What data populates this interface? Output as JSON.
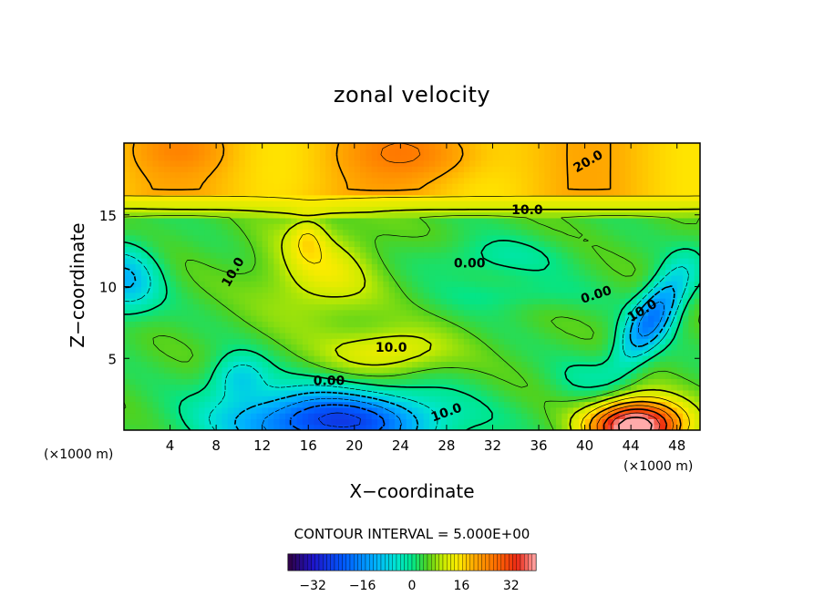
{
  "chart_data": {
    "type": "heatmap",
    "title": "zonal velocity",
    "xlabel": "X−coordinate",
    "ylabel": "Z−coordinate",
    "x_unit_left": "(×1000 m)",
    "x_unit_right": "(×1000 m)",
    "xlim": [
      0,
      50
    ],
    "ylim": [
      0,
      20
    ],
    "x_ticks": [
      4,
      8,
      12,
      16,
      20,
      24,
      28,
      32,
      36,
      40,
      44,
      48
    ],
    "x_tick_labels": [
      "4",
      "8",
      "12",
      "16",
      "20",
      "24",
      "28",
      "32",
      "36",
      "40",
      "44",
      "48"
    ],
    "y_ticks": [
      5,
      10,
      15
    ],
    "y_tick_labels": [
      "5",
      "10",
      "15"
    ],
    "contour_interval_text": "CONTOUR INTERVAL = 5.000E+00",
    "contour_interval": 5.0,
    "contour_labels": [
      {
        "text": "20.0",
        "x": 40.3,
        "z": 18.7,
        "angle": -30
      },
      {
        "text": "10.0",
        "x": 35.0,
        "z": 15.3,
        "angle": 0
      },
      {
        "text": "10.0",
        "x": 9.5,
        "z": 11.0,
        "angle": -60
      },
      {
        "text": "0.00",
        "x": 30.0,
        "z": 11.6,
        "angle": 0
      },
      {
        "text": "0.00",
        "x": 41.0,
        "z": 9.4,
        "angle": -18
      },
      {
        "text": "10.0",
        "x": 45.0,
        "z": 8.3,
        "angle": -30
      },
      {
        "text": "10.0",
        "x": 23.2,
        "z": 5.7,
        "angle": 0
      },
      {
        "text": "0.00",
        "x": 17.8,
        "z": 3.4,
        "angle": 0
      },
      {
        "text": "10.0",
        "x": 28.0,
        "z": 1.2,
        "angle": -20
      }
    ],
    "features": [
      {
        "kind": "max",
        "x": 44.5,
        "z": 0.3,
        "value": 40
      },
      {
        "kind": "min",
        "x": 18.0,
        "z": 0.5,
        "value": -25
      },
      {
        "kind": "min",
        "x": 45.0,
        "z": 7.0,
        "value": -20
      },
      {
        "kind": "min",
        "x": 10.0,
        "z": 3.7,
        "value": -8
      },
      {
        "kind": "min",
        "x": 0.0,
        "z": 10.5,
        "value": -12
      },
      {
        "kind": "max",
        "x": 25.5,
        "z": 19.0,
        "value": 24
      },
      {
        "kind": "max",
        "x": 5.0,
        "z": 19.2,
        "value": 22
      }
    ],
    "colorbar": {
      "min": -40,
      "max": 40,
      "ticks": [
        -32,
        -16,
        0,
        16,
        32
      ],
      "tick_labels": [
        "−32",
        "−16",
        "0",
        "16",
        "32"
      ]
    }
  }
}
